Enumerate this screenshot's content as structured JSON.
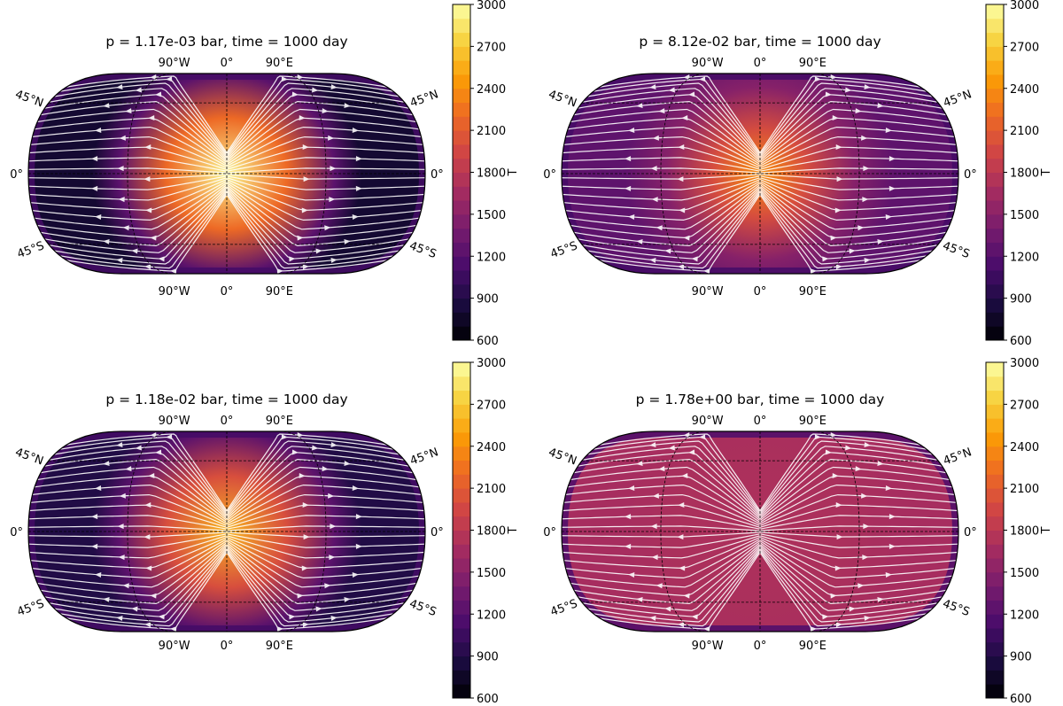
{
  "chart_data": [
    {
      "type": "heatmap",
      "title": "p = 1.17e-03 bar, time = 1000 day",
      "colorbar": {
        "label": "T",
        "range": [
          600,
          3000
        ],
        "ticks": [
          "600",
          "900",
          "1200",
          "1500",
          "1800",
          "2100",
          "2400",
          "2700",
          "3000"
        ]
      },
      "lon_labels_top": [
        "90°W",
        "0°",
        "90°E"
      ],
      "lon_labels_bottom": [
        "90°W",
        "0°",
        "90°E"
      ],
      "lat_labels_left": [
        "45°N",
        "0°",
        "45°S"
      ],
      "lat_labels_right": [
        "45°N",
        "0°",
        "45°S"
      ],
      "field": {
        "T_substellar": 2950,
        "T_nightside": 800,
        "T_limb": 1100,
        "hotspot_shape": "broad"
      },
      "flow": "divergent from substellar point toward nightside"
    },
    {
      "type": "heatmap",
      "title": "p = 8.12e-02 bar, time = 1000 day",
      "colorbar": {
        "label": "T",
        "range": [
          600,
          3000
        ],
        "ticks": [
          "600",
          "900",
          "1200",
          "1500",
          "1800",
          "2100",
          "2400",
          "2700",
          "3000"
        ]
      },
      "lon_labels_top": [
        "90°W",
        "0°",
        "90°E"
      ],
      "lon_labels_bottom": [
        "90°W",
        "0°",
        "90°E"
      ],
      "lat_labels_left": [
        "45°N",
        "0°",
        "45°S"
      ],
      "lat_labels_right": [
        "45°N",
        "0°",
        "45°S"
      ],
      "field": {
        "T_substellar": 2400,
        "T_nightside": 1250,
        "T_limb": 1100,
        "hotspot_shape": "concentrated"
      },
      "flow": "divergent from substellar point toward nightside"
    },
    {
      "type": "heatmap",
      "title": "p = 1.18e-02 bar, time = 1000 day",
      "colorbar": {
        "label": "T",
        "range": [
          600,
          3000
        ],
        "ticks": [
          "600",
          "900",
          "1200",
          "1500",
          "1800",
          "2100",
          "2400",
          "2700",
          "3000"
        ]
      },
      "lon_labels_top": [
        "90°W",
        "0°",
        "90°E"
      ],
      "lon_labels_bottom": [
        "90°W",
        "0°",
        "90°E"
      ],
      "lat_labels_left": [
        "45°N",
        "0°",
        "45°S"
      ],
      "lat_labels_right": [
        "45°N",
        "0°",
        "45°S"
      ],
      "field": {
        "T_substellar": 2600,
        "T_nightside": 900,
        "T_limb": 1100,
        "hotspot_shape": "broad"
      },
      "flow": "divergent from substellar point toward nightside"
    },
    {
      "type": "heatmap",
      "title": "p = 1.78e+00 bar, time = 1000 day",
      "colorbar": {
        "label": "T",
        "range": [
          600,
          3000
        ],
        "ticks": [
          "600",
          "900",
          "1200",
          "1500",
          "1800",
          "2100",
          "2400",
          "2700",
          "3000"
        ]
      },
      "lon_labels_top": [
        "90°W",
        "0°",
        "90°E"
      ],
      "lon_labels_bottom": [
        "90°W",
        "0°",
        "90°E"
      ],
      "lat_labels_left": [
        "45°N",
        "0°",
        "45°S"
      ],
      "lat_labels_right": [
        "45°N",
        "0°",
        "45°S"
      ],
      "field": {
        "T_substellar": 1720,
        "T_nightside": 1680,
        "T_limb": 1150,
        "hotspot_shape": "uniform"
      },
      "flow": "divergent from substellar point toward nightside"
    }
  ],
  "colormap": {
    "name": "inferno",
    "stops": [
      "#000004",
      "#1b0c41",
      "#4a0c6b",
      "#781c6d",
      "#a52c60",
      "#cf4446",
      "#ed6925",
      "#fb9b06",
      "#f7d13d",
      "#fcffa4"
    ]
  }
}
